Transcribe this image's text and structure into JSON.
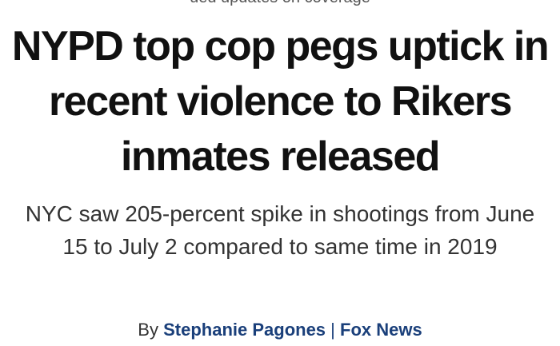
{
  "article": {
    "cut_text": "ued updates on coverage",
    "headline": "NYPD top cop pegs uptick in recent violence to Rikers inmates released",
    "subhead": "NYC saw 205-percent spike in shootings from June 15 to July 2 compared to same time in 2019",
    "byline": {
      "prefix": "By",
      "author": "Stephanie Pagones",
      "separator": "|",
      "outlet": "Fox News"
    }
  },
  "colors": {
    "headline": "#111111",
    "subhead": "#333333",
    "byline_link": "#1a3f7a"
  }
}
